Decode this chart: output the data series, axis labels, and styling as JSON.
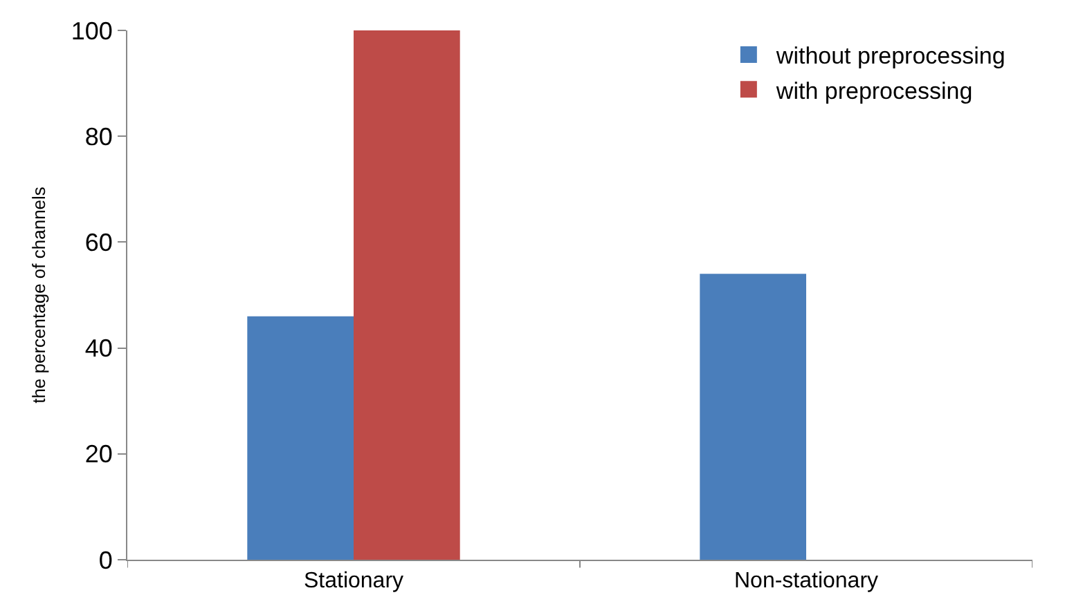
{
  "chart_data": {
    "type": "bar",
    "ylabel": "the percentage of channels",
    "categories": [
      "Stationary",
      "Non-stationary"
    ],
    "series": [
      {
        "name": "without preprocessing",
        "color": "#4a7ebb",
        "values": [
          46,
          54
        ]
      },
      {
        "name": "with preprocessing",
        "color": "#be4b48",
        "values": [
          100,
          null
        ]
      }
    ],
    "ylim": [
      0,
      100
    ],
    "yticks": [
      0,
      20,
      40,
      60,
      80,
      100
    ],
    "grid": false,
    "legend": "top right"
  }
}
